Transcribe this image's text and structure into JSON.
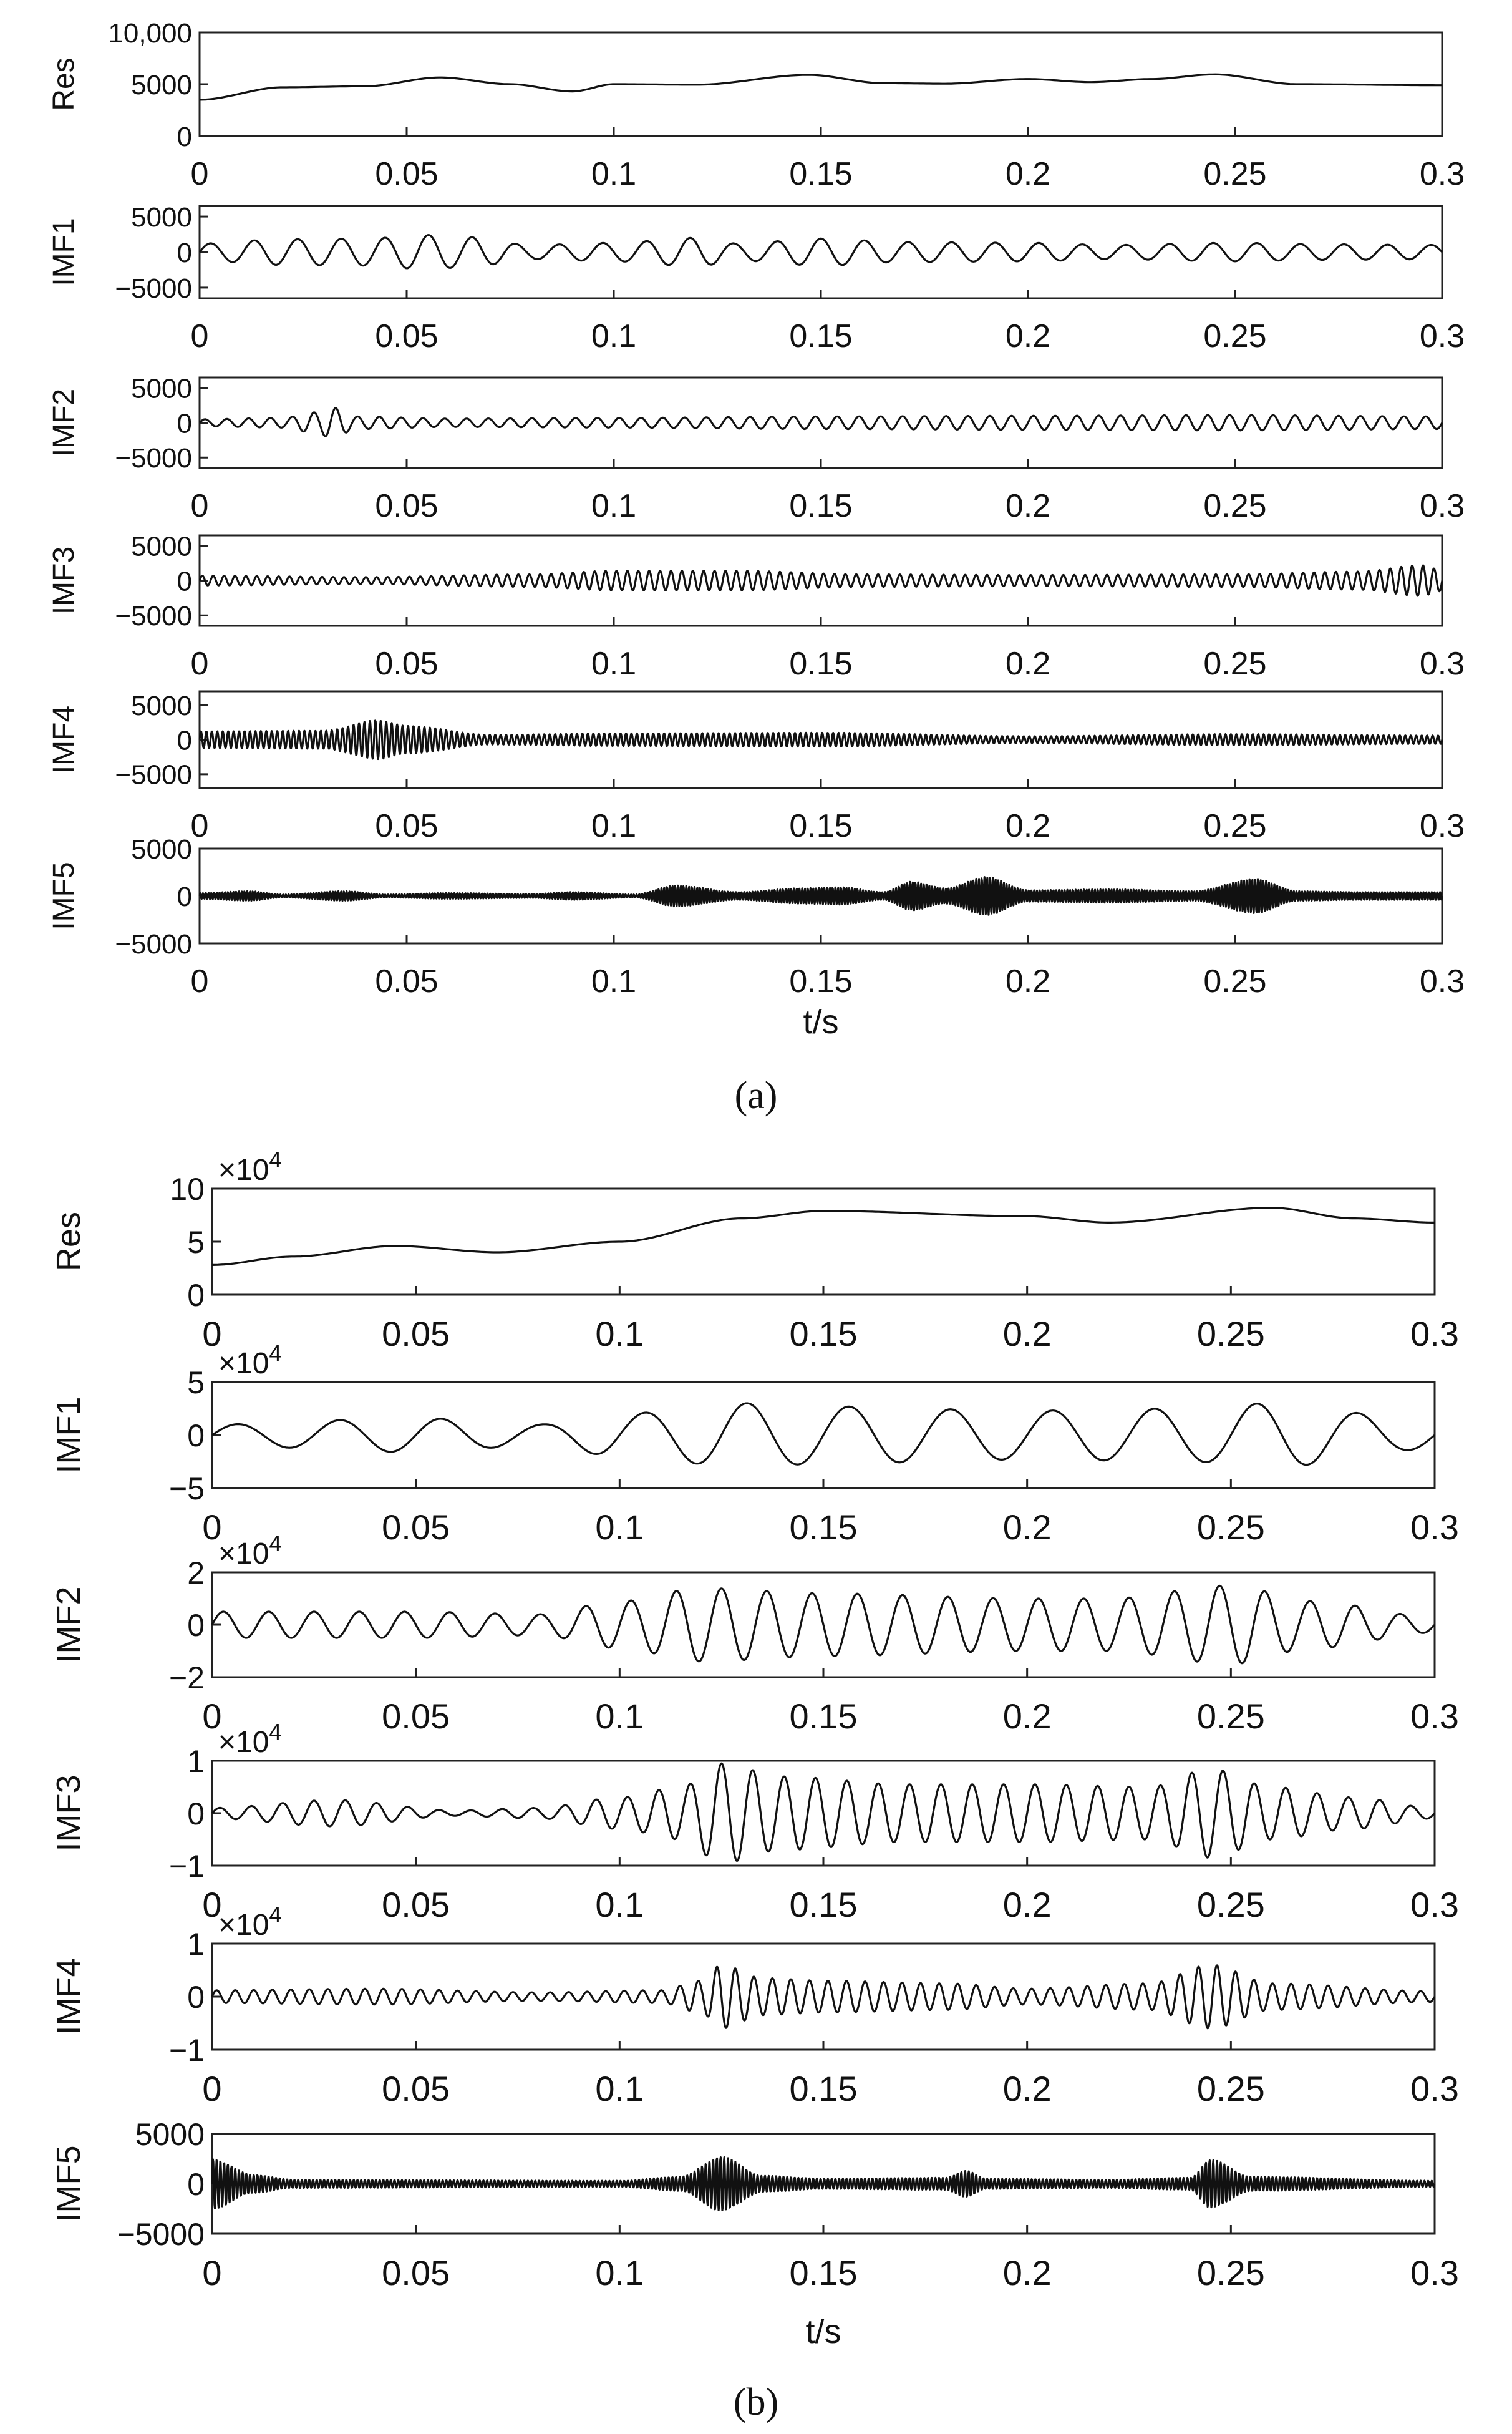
{
  "figure": {
    "captions": [
      "(a)",
      "(b)"
    ],
    "line_color": "#111111",
    "axis_color": "#222222"
  },
  "chart_data": [
    {
      "type": "line",
      "panel": "a",
      "xlabel": "t/s",
      "xlim": [
        0,
        0.3
      ],
      "x_ticks": [
        "0",
        "0.05",
        "0.1",
        "0.15",
        "0.2",
        "0.25",
        "0.3"
      ],
      "subplots": [
        {
          "ylabel": "Res",
          "exponent": "",
          "ylim": [
            0,
            10000
          ],
          "y_ticks": [
            {
              "v": 10000,
              "label": "10,000"
            },
            {
              "v": 5000,
              "label": "5000"
            },
            {
              "v": 0,
              "label": "0"
            }
          ],
          "signal": {
            "kind": "trend",
            "base": 4900,
            "points": [
              [
                0,
                3500
              ],
              [
                0.02,
                4700
              ],
              [
                0.04,
                4800
              ],
              [
                0.058,
                5650
              ],
              [
                0.075,
                5000
              ],
              [
                0.09,
                4300
              ],
              [
                0.1,
                5000
              ],
              [
                0.12,
                4950
              ],
              [
                0.147,
                5900
              ],
              [
                0.165,
                5100
              ],
              [
                0.18,
                5050
              ],
              [
                0.2,
                5500
              ],
              [
                0.215,
                5200
              ],
              [
                0.23,
                5500
              ],
              [
                0.245,
                5950
              ],
              [
                0.265,
                5000
              ],
              [
                0.3,
                4900
              ]
            ]
          }
        },
        {
          "ylabel": "IMF1",
          "exponent": "",
          "ylim": [
            -6500,
            6500
          ],
          "y_ticks": [
            {
              "v": 5000,
              "label": "5000"
            },
            {
              "v": 0,
              "label": "0"
            },
            {
              "v": -5000,
              "label": "−5000"
            }
          ],
          "signal": {
            "kind": "osc",
            "freq": 95,
            "env": [
              [
                0,
                1200
              ],
              [
                0.02,
                1800
              ],
              [
                0.04,
                1900
              ],
              [
                0.055,
                2400
              ],
              [
                0.065,
                2100
              ],
              [
                0.08,
                1000
              ],
              [
                0.1,
                1300
              ],
              [
                0.12,
                2000
              ],
              [
                0.13,
                1200
              ],
              [
                0.15,
                1900
              ],
              [
                0.17,
                1400
              ],
              [
                0.2,
                1300
              ],
              [
                0.22,
                1000
              ],
              [
                0.25,
                1300
              ],
              [
                0.27,
                1100
              ],
              [
                0.3,
                1000
              ]
            ]
          }
        },
        {
          "ylabel": "IMF2",
          "exponent": "",
          "ylim": [
            -6500,
            6500
          ],
          "y_ticks": [
            {
              "v": 5000,
              "label": "5000"
            },
            {
              "v": 0,
              "label": "0"
            },
            {
              "v": -5000,
              "label": "−5000"
            }
          ],
          "signal": {
            "kind": "osc",
            "freq": 190,
            "env": [
              [
                0,
                500
              ],
              [
                0.02,
                700
              ],
              [
                0.028,
                1500
              ],
              [
                0.032,
                2200
              ],
              [
                0.038,
                900
              ],
              [
                0.06,
                600
              ],
              [
                0.1,
                700
              ],
              [
                0.15,
                900
              ],
              [
                0.2,
                1000
              ],
              [
                0.25,
                1100
              ],
              [
                0.3,
                900
              ]
            ]
          }
        },
        {
          "ylabel": "IMF3",
          "exponent": "",
          "ylim": [
            -6500,
            6500
          ],
          "y_ticks": [
            {
              "v": 5000,
              "label": "5000"
            },
            {
              "v": 0,
              "label": "0"
            },
            {
              "v": -5000,
              "label": "−5000"
            }
          ],
          "signal": {
            "kind": "osc",
            "freq": 380,
            "env": [
              [
                0,
                700
              ],
              [
                0.04,
                500
              ],
              [
                0.08,
                900
              ],
              [
                0.1,
                1400
              ],
              [
                0.13,
                1400
              ],
              [
                0.16,
                900
              ],
              [
                0.2,
                800
              ],
              [
                0.25,
                900
              ],
              [
                0.28,
                1300
              ],
              [
                0.295,
                2200
              ],
              [
                0.3,
                1500
              ]
            ]
          }
        },
        {
          "ylabel": "IMF4",
          "exponent": "",
          "ylim": [
            -7000,
            7000
          ],
          "y_ticks": [
            {
              "v": 5000,
              "label": "5000"
            },
            {
              "v": 0,
              "label": "0"
            },
            {
              "v": -5000,
              "label": "−5000"
            }
          ],
          "signal": {
            "kind": "osc",
            "freq": 760,
            "env": [
              [
                0,
                1200
              ],
              [
                0.03,
                1300
              ],
              [
                0.043,
                2800
              ],
              [
                0.05,
                2000
              ],
              [
                0.07,
                700
              ],
              [
                0.1,
                900
              ],
              [
                0.15,
                1000
              ],
              [
                0.2,
                500
              ],
              [
                0.25,
                800
              ],
              [
                0.3,
                600
              ]
            ]
          }
        },
        {
          "ylabel": "IMF5",
          "exponent": "",
          "ylim": [
            -5000,
            5000
          ],
          "y_ticks": [
            {
              "v": 5000,
              "label": "5000"
            },
            {
              "v": 0,
              "label": "0"
            },
            {
              "v": -5000,
              "label": "−5000"
            }
          ],
          "signal": {
            "kind": "osc",
            "freq": 1500,
            "env": [
              [
                0,
                300
              ],
              [
                0.012,
                500
              ],
              [
                0.02,
                150
              ],
              [
                0.035,
                500
              ],
              [
                0.045,
                150
              ],
              [
                0.06,
                300
              ],
              [
                0.08,
                200
              ],
              [
                0.09,
                400
              ],
              [
                0.105,
                150
              ],
              [
                0.115,
                1100
              ],
              [
                0.13,
                400
              ],
              [
                0.145,
                800
              ],
              [
                0.155,
                900
              ],
              [
                0.165,
                400
              ],
              [
                0.172,
                1500
              ],
              [
                0.18,
                800
              ],
              [
                0.19,
                2000
              ],
              [
                0.2,
                600
              ],
              [
                0.22,
                700
              ],
              [
                0.24,
                500
              ],
              [
                0.255,
                1800
              ],
              [
                0.265,
                500
              ],
              [
                0.28,
                400
              ],
              [
                0.3,
                400
              ]
            ]
          }
        }
      ]
    },
    {
      "type": "line",
      "panel": "b",
      "xlabel": "t/s",
      "xlim": [
        0,
        0.3
      ],
      "x_ticks": [
        "0",
        "0.05",
        "0.1",
        "0.15",
        "0.2",
        "0.25",
        "0.3"
      ],
      "subplots": [
        {
          "ylabel": "Res",
          "exponent": "4",
          "ylim": [
            0,
            10
          ],
          "y_ticks": [
            {
              "v": 10,
              "label": "10"
            },
            {
              "v": 5,
              "label": "5"
            },
            {
              "v": 0,
              "label": "0"
            }
          ],
          "signal": {
            "kind": "trend",
            "base": 6.8,
            "points": [
              [
                0,
                2.8
              ],
              [
                0.02,
                3.6
              ],
              [
                0.045,
                4.6
              ],
              [
                0.07,
                4.0
              ],
              [
                0.1,
                5.0
              ],
              [
                0.13,
                7.2
              ],
              [
                0.15,
                7.9
              ],
              [
                0.2,
                7.4
              ],
              [
                0.22,
                6.8
              ],
              [
                0.26,
                8.2
              ],
              [
                0.28,
                7.2
              ],
              [
                0.3,
                6.8
              ]
            ]
          }
        },
        {
          "ylabel": "IMF1",
          "exponent": "4",
          "ylim": [
            -5,
            5
          ],
          "y_ticks": [
            {
              "v": 5,
              "label": "5"
            },
            {
              "v": 0,
              "label": "0"
            },
            {
              "v": -5,
              "label": "−5"
            }
          ],
          "signal": {
            "kind": "osc",
            "freq": 40,
            "env": [
              [
                0,
                1.0
              ],
              [
                0.05,
                1.6
              ],
              [
                0.08,
                1.0
              ],
              [
                0.1,
                2.0
              ],
              [
                0.13,
                3.0
              ],
              [
                0.15,
                2.7
              ],
              [
                0.2,
                2.3
              ],
              [
                0.24,
                2.5
              ],
              [
                0.26,
                3.0
              ],
              [
                0.3,
                1.3
              ]
            ]
          }
        },
        {
          "ylabel": "IMF2",
          "exponent": "4",
          "ylim": [
            -2,
            2
          ],
          "y_ticks": [
            {
              "v": 2,
              "label": "2"
            },
            {
              "v": 0,
              "label": "0"
            },
            {
              "v": -2,
              "label": "−2"
            }
          ],
          "signal": {
            "kind": "osc",
            "freq": 90,
            "env": [
              [
                0,
                0.5
              ],
              [
                0.05,
                0.5
              ],
              [
                0.08,
                0.4
              ],
              [
                0.1,
                0.9
              ],
              [
                0.12,
                1.4
              ],
              [
                0.15,
                1.2
              ],
              [
                0.2,
                1.0
              ],
              [
                0.22,
                1.0
              ],
              [
                0.25,
                1.5
              ],
              [
                0.27,
                0.9
              ],
              [
                0.3,
                0.3
              ]
            ]
          }
        },
        {
          "ylabel": "IMF3",
          "exponent": "4",
          "ylim": [
            -1,
            1
          ],
          "y_ticks": [
            {
              "v": 1,
              "label": "1"
            },
            {
              "v": 0,
              "label": "0"
            },
            {
              "v": -1,
              "label": "−1"
            }
          ],
          "signal": {
            "kind": "osc",
            "freq": 130,
            "env": [
              [
                0,
                0.1
              ],
              [
                0.03,
                0.25
              ],
              [
                0.06,
                0.05
              ],
              [
                0.08,
                0.1
              ],
              [
                0.1,
                0.3
              ],
              [
                0.115,
                0.5
              ],
              [
                0.125,
                0.95
              ],
              [
                0.14,
                0.7
              ],
              [
                0.17,
                0.55
              ],
              [
                0.2,
                0.55
              ],
              [
                0.23,
                0.5
              ],
              [
                0.245,
                0.85
              ],
              [
                0.26,
                0.5
              ],
              [
                0.28,
                0.3
              ],
              [
                0.3,
                0.1
              ]
            ]
          }
        },
        {
          "ylabel": "IMF4",
          "exponent": "4",
          "ylim": [
            -1,
            1
          ],
          "y_ticks": [
            {
              "v": 1,
              "label": "1"
            },
            {
              "v": 0,
              "label": "0"
            },
            {
              "v": -1,
              "label": "−1"
            }
          ],
          "signal": {
            "kind": "osc",
            "freq": 220,
            "env": [
              [
                0,
                0.12
              ],
              [
                0.04,
                0.15
              ],
              [
                0.08,
                0.08
              ],
              [
                0.11,
                0.12
              ],
              [
                0.12,
                0.3
              ],
              [
                0.125,
                0.6
              ],
              [
                0.135,
                0.35
              ],
              [
                0.15,
                0.3
              ],
              [
                0.18,
                0.25
              ],
              [
                0.2,
                0.15
              ],
              [
                0.23,
                0.25
              ],
              [
                0.245,
                0.6
              ],
              [
                0.26,
                0.25
              ],
              [
                0.3,
                0.1
              ]
            ]
          }
        },
        {
          "ylabel": "IMF5",
          "exponent": "",
          "ylim": [
            -5000,
            5000
          ],
          "y_ticks": [
            {
              "v": 5000,
              "label": "5000"
            },
            {
              "v": 0,
              "label": "0"
            },
            {
              "v": -5000,
              "label": "−5000"
            }
          ],
          "signal": {
            "kind": "osc",
            "freq": 1100,
            "env": [
              [
                0,
                2500
              ],
              [
                0.01,
                900
              ],
              [
                0.02,
                400
              ],
              [
                0.1,
                300
              ],
              [
                0.115,
                700
              ],
              [
                0.125,
                2700
              ],
              [
                0.135,
                800
              ],
              [
                0.15,
                500
              ],
              [
                0.18,
                600
              ],
              [
                0.185,
                1300
              ],
              [
                0.19,
                500
              ],
              [
                0.22,
                400
              ],
              [
                0.24,
                600
              ],
              [
                0.245,
                2400
              ],
              [
                0.255,
                700
              ],
              [
                0.3,
                300
              ]
            ]
          }
        }
      ]
    }
  ]
}
